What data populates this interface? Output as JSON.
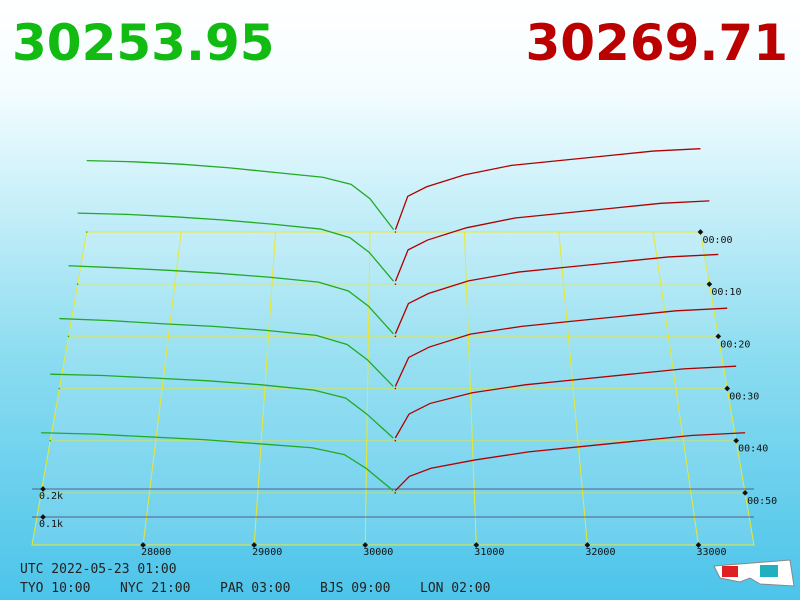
{
  "chart_data": {
    "type": "depth3d",
    "bid_price": 30253.95,
    "ask_price": 30269.71,
    "bid_color": "#11bb11",
    "ask_color": "#bb0000",
    "xlim": [
      27000,
      33500
    ],
    "xticks": [
      28000,
      29000,
      30000,
      31000,
      32000,
      33000
    ],
    "tlim": [
      0,
      60
    ],
    "tticks": [
      {
        "value": 0,
        "label": "00:00"
      },
      {
        "value": 10,
        "label": "00:10"
      },
      {
        "value": 20,
        "label": "00:20"
      },
      {
        "value": 30,
        "label": "00:30"
      },
      {
        "value": 40,
        "label": "00:40"
      },
      {
        "value": 50,
        "label": "00:50"
      }
    ],
    "zticks": [
      {
        "value": 100,
        "label": "0.1k"
      },
      {
        "value": 200,
        "label": "0.2k"
      }
    ],
    "bids": {
      "color": "#22aa22",
      "prices": [
        27000,
        27500,
        28000,
        28500,
        29000,
        29500,
        29800,
        30000,
        30250
      ],
      "snapshots": [
        {
          "t": 0,
          "values": [
            300,
            295,
            285,
            270,
            250,
            230,
            200,
            140,
            10
          ]
        },
        {
          "t": 10,
          "values": [
            290,
            285,
            275,
            262,
            245,
            225,
            190,
            130,
            12
          ]
        },
        {
          "t": 20,
          "values": [
            280,
            272,
            262,
            250,
            235,
            215,
            180,
            120,
            10
          ]
        },
        {
          "t": 30,
          "values": [
            270,
            262,
            250,
            240,
            225,
            205,
            170,
            110,
            8
          ]
        },
        {
          "t": 40,
          "values": [
            250,
            245,
            235,
            225,
            210,
            190,
            160,
            100,
            10
          ]
        },
        {
          "t": 50,
          "values": [
            220,
            215,
            205,
            195,
            180,
            165,
            140,
            90,
            8
          ]
        }
      ]
    },
    "asks": {
      "color": "#b00000",
      "prices": [
        30270,
        30400,
        30600,
        31000,
        31500,
        32000,
        32500,
        33000,
        33500
      ],
      "snapshots": [
        {
          "t": 0,
          "values": [
            10,
            150,
            190,
            240,
            280,
            300,
            320,
            340,
            350
          ]
        },
        {
          "t": 10,
          "values": [
            12,
            140,
            180,
            230,
            270,
            290,
            310,
            330,
            340
          ]
        },
        {
          "t": 20,
          "values": [
            10,
            130,
            170,
            220,
            255,
            275,
            295,
            315,
            325
          ]
        },
        {
          "t": 30,
          "values": [
            8,
            120,
            160,
            210,
            240,
            260,
            280,
            300,
            310
          ]
        },
        {
          "t": 40,
          "values": [
            10,
            100,
            140,
            180,
            210,
            230,
            250,
            270,
            280
          ]
        },
        {
          "t": 50,
          "values": [
            8,
            60,
            90,
            120,
            150,
            170,
            190,
            210,
            220
          ]
        }
      ]
    },
    "clock": {
      "utc": "UTC 2022-05-23 01:00",
      "zones": [
        "TYO 10:00",
        "NYC 21:00",
        "PAR 03:00",
        "BJS 09:00",
        "LON 02:00"
      ]
    }
  }
}
